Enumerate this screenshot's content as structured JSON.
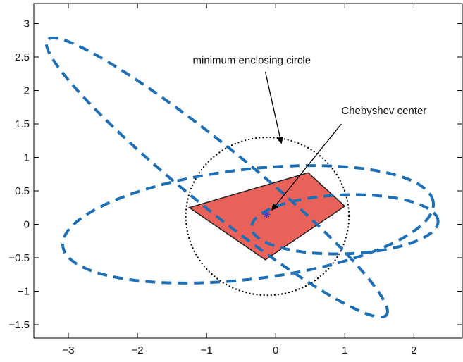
{
  "chart_data": {
    "type": "scatter",
    "title": "",
    "xlabel": "",
    "ylabel": "",
    "xlim": [
      -3.5,
      2.7
    ],
    "ylim": [
      -1.7,
      3.3
    ],
    "x_ticks": [
      -3,
      -2,
      -1,
      0,
      1,
      2
    ],
    "y_ticks": [
      -1.5,
      -1,
      -0.5,
      0,
      0.5,
      1,
      1.5,
      2,
      2.5,
      3
    ],
    "x_tick_labels": [
      "−3",
      "−2",
      "−1",
      "0",
      "1",
      "2"
    ],
    "y_tick_labels": [
      "−1.5",
      "−1",
      "−0.5",
      "0",
      "0.5",
      "1",
      "1.5",
      "2",
      "2.5",
      "3"
    ],
    "grid": false,
    "ellipses": [
      {
        "center": [
          -0.85,
          0.7
        ],
        "semi_axes": [
          3.2,
          0.45
        ],
        "angle_deg": -40
      },
      {
        "center": [
          -0.4,
          0.0
        ],
        "semi_axes": [
          2.7,
          0.82
        ],
        "angle_deg": 7
      },
      {
        "center": [
          1.0,
          0.0
        ],
        "semi_axes": [
          1.35,
          0.44
        ],
        "angle_deg": 2
      }
    ],
    "ellipse_color": "#1f6fb5",
    "intersection_region": {
      "vertices": [
        [
          -1.25,
          0.25
        ],
        [
          -0.15,
          -0.53
        ],
        [
          1.0,
          0.27
        ],
        [
          0.47,
          0.77
        ]
      ],
      "fill": "#e8625a"
    },
    "minimum_enclosing_circle": {
      "center": [
        -0.12,
        0.12
      ],
      "radius": 1.18
    },
    "chebyshev_center": [
      -0.13,
      0.15
    ],
    "annotations": [
      {
        "text": "minimum enclosing circle",
        "text_pos": [
          -1.2,
          2.4
        ],
        "arrow_from": [
          -0.15,
          2.28
        ],
        "arrow_to": [
          0.08,
          1.22
        ]
      },
      {
        "text": "Chebyshev center",
        "text_pos": [
          0.95,
          1.65
        ],
        "arrow_from": [
          0.95,
          1.5
        ],
        "arrow_to": [
          -0.05,
          0.22
        ]
      }
    ]
  }
}
